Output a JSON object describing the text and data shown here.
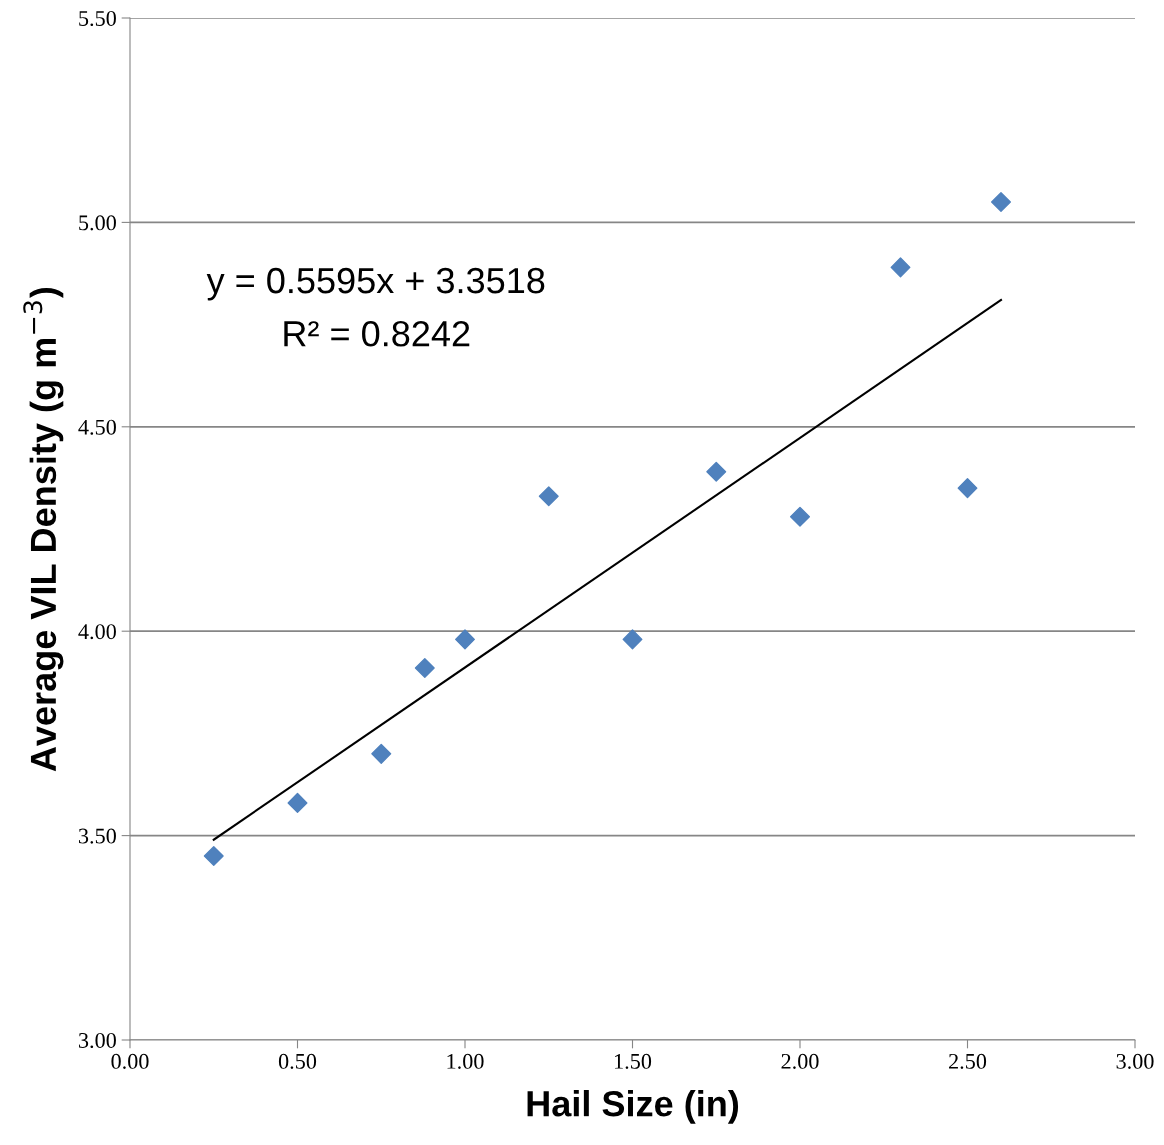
{
  "chart_data": {
    "type": "scatter",
    "xlabel": "Hail Size (in)",
    "ylabel": "Average VIL Density (g m$^{−3}$)",
    "series": [
      {
        "color": "#4f81bd",
        "marker": "diamond",
        "x": [
          0.25,
          0.5,
          0.75,
          0.88,
          1.0,
          1.25,
          1.5,
          1.75,
          2.0,
          2.3,
          2.5,
          2.6
        ],
        "values": [
          3.45,
          3.58,
          3.7,
          3.91,
          3.98,
          4.33,
          3.98,
          4.39,
          4.28,
          4.89,
          4.35,
          5.05
        ]
      },
      {
        "type": "line",
        "color": "#000000",
        "x": [
          0.25,
          2.6
        ],
        "values": [
          3.49,
          4.81
        ]
      }
    ],
    "annotations": [
      "y = 0.5595x + 3.3518",
      "R² = 0.8242"
    ],
    "xlim": [
      0,
      3
    ],
    "xticks": [
      {
        "value": 0,
        "label": "0.00"
      },
      {
        "value": 0.5,
        "label": "0.50"
      },
      {
        "value": 1,
        "label": "1.00"
      },
      {
        "value": 1.5,
        "label": "1.50"
      },
      {
        "value": 2,
        "label": "2.00"
      },
      {
        "value": 2.5,
        "label": "2.50"
      },
      {
        "value": 3,
        "label": "3.00"
      }
    ],
    "ylim": [
      3,
      5.5
    ],
    "yticks": [
      {
        "value": 3,
        "label": "3.00"
      },
      {
        "value": 3.5,
        "label": "3.50"
      },
      {
        "value": 4,
        "label": "4.00"
      },
      {
        "value": 4.5,
        "label": "4.50"
      },
      {
        "value": 5,
        "label": "5.00"
      },
      {
        "value": 5.5,
        "label": "5.50"
      }
    ],
    "grid": "y",
    "legend": false
  }
}
